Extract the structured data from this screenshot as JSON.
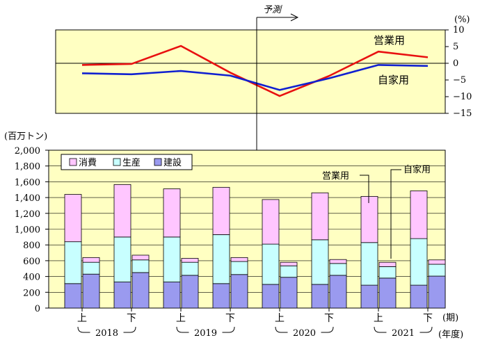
{
  "chart_data": [
    {
      "type": "line",
      "unit": "(%)",
      "x": [
        "2018上",
        "2018下",
        "2019上",
        "2019下",
        "2020上",
        "2020下",
        "2021上",
        "2021下"
      ],
      "ylim": [
        -15,
        10
      ],
      "yticks": [
        "10",
        "5",
        "0",
        "−5",
        "−10",
        "−15"
      ],
      "series": [
        {
          "name": "営業用",
          "color": "#e81010",
          "values": [
            -0.5,
            -0.2,
            5.2,
            -2.8,
            -9.8,
            -3.8,
            3.5,
            1.8
          ]
        },
        {
          "name": "自家用",
          "color": "#1020d0",
          "values": [
            -3.0,
            -3.3,
            -2.3,
            -3.7,
            -8.0,
            -4.5,
            -0.5,
            -0.8
          ]
        }
      ],
      "annotation": "予測"
    },
    {
      "type": "bar",
      "stacked": true,
      "unit": "(百万トン)",
      "ylim": [
        0,
        2000
      ],
      "yticks": [
        "2,000",
        "1,800",
        "1,600",
        "1,400",
        "1,200",
        "1,000",
        "800",
        "600",
        "400",
        "200",
        "0"
      ],
      "period_labels": [
        "上",
        "下",
        "上",
        "下",
        "上",
        "下",
        "上",
        "下"
      ],
      "year_labels": [
        "2018",
        "2019",
        "2020",
        "2021"
      ],
      "axis_period_label": "(期)",
      "axis_year_label": "(年度)",
      "legend": [
        {
          "name": "消費",
          "color": "#ffc6ff"
        },
        {
          "name": "生産",
          "color": "#c8ffff"
        },
        {
          "name": "建設",
          "color": "#9a9aef"
        }
      ],
      "groups": [
        {
          "period": "2018上",
          "営業用": {
            "建設": 310,
            "生産": 530,
            "消費": 600
          },
          "自家用": {
            "建設": 430,
            "生産": 150,
            "消費": 60
          }
        },
        {
          "period": "2018下",
          "営業用": {
            "建設": 330,
            "生産": 570,
            "消費": 665
          },
          "自家用": {
            "建設": 450,
            "生産": 160,
            "消費": 60
          }
        },
        {
          "period": "2019上",
          "営業用": {
            "建設": 330,
            "生産": 570,
            "消費": 610
          },
          "自家用": {
            "建設": 415,
            "生産": 165,
            "消費": 50
          }
        },
        {
          "period": "2019下",
          "営業用": {
            "建設": 310,
            "生産": 620,
            "消費": 600
          },
          "自家用": {
            "建設": 425,
            "生産": 165,
            "消費": 50
          }
        },
        {
          "period": "2020上",
          "営業用": {
            "建設": 300,
            "生産": 510,
            "消費": 565
          },
          "自家用": {
            "建設": 390,
            "生産": 145,
            "消費": 45
          }
        },
        {
          "period": "2020下",
          "営業用": {
            "建設": 300,
            "生産": 565,
            "消費": 595
          },
          "自家用": {
            "建設": 415,
            "生産": 150,
            "消費": 50
          }
        },
        {
          "period": "2021上",
          "営業用": {
            "建設": 290,
            "生産": 540,
            "消費": 585
          },
          "自家用": {
            "建設": 380,
            "生産": 145,
            "消費": 55
          }
        },
        {
          "period": "2021下",
          "営業用": {
            "建設": 290,
            "生産": 590,
            "消費": 605
          },
          "自家用": {
            "建設": 405,
            "生産": 150,
            "消費": 55
          }
        }
      ],
      "annotations": [
        "営業用",
        "自家用"
      ]
    }
  ]
}
